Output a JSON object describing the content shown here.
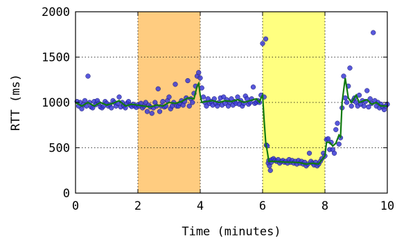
{
  "chart_data": {
    "type": "scatter",
    "xlabel": "Time (minutes)",
    "ylabel": "RTT (ms)",
    "xlim": [
      0,
      10
    ],
    "ylim": [
      0,
      2000
    ],
    "x_ticks": [
      0,
      2,
      4,
      6,
      8,
      10
    ],
    "y_ticks": [
      0,
      500,
      1000,
      1500,
      2000
    ],
    "grid": "dotted",
    "shaded_regions": [
      {
        "x0": 2,
        "x1": 4,
        "color": "#ffcc80"
      },
      {
        "x0": 6,
        "x1": 8,
        "color": "#ffff80"
      }
    ],
    "points_color": "#3b3bd6",
    "line_color": "#107a10",
    "scatter_points": [
      [
        0.05,
        1010
      ],
      [
        0.1,
        960
      ],
      [
        0.15,
        1000
      ],
      [
        0.2,
        930
      ],
      [
        0.25,
        975
      ],
      [
        0.3,
        1020
      ],
      [
        0.35,
        960
      ],
      [
        0.4,
        1290
      ],
      [
        0.45,
        1000
      ],
      [
        0.5,
        950
      ],
      [
        0.55,
        940
      ],
      [
        0.6,
        1010
      ],
      [
        0.65,
        975
      ],
      [
        0.7,
        1020
      ],
      [
        0.75,
        990
      ],
      [
        0.8,
        950
      ],
      [
        0.85,
        940
      ],
      [
        0.9,
        960
      ],
      [
        0.95,
        1010
      ],
      [
        1.0,
        990
      ],
      [
        1.05,
        960
      ],
      [
        1.1,
        975
      ],
      [
        1.15,
        940
      ],
      [
        1.2,
        1020
      ],
      [
        1.25,
        1000
      ],
      [
        1.3,
        960
      ],
      [
        1.35,
        990
      ],
      [
        1.4,
        1060
      ],
      [
        1.45,
        950
      ],
      [
        1.5,
        1000
      ],
      [
        1.55,
        960
      ],
      [
        1.6,
        940
      ],
      [
        1.65,
        990
      ],
      [
        1.7,
        1010
      ],
      [
        1.75,
        970
      ],
      [
        1.8,
        955
      ],
      [
        1.85,
        980
      ],
      [
        1.9,
        960
      ],
      [
        1.95,
        945
      ],
      [
        2.0,
        975
      ],
      [
        2.05,
        960
      ],
      [
        2.1,
        990
      ],
      [
        2.15,
        940
      ],
      [
        2.2,
        960
      ],
      [
        2.25,
        1000
      ],
      [
        2.3,
        900
      ],
      [
        2.35,
        970
      ],
      [
        2.4,
        950
      ],
      [
        2.45,
        880
      ],
      [
        2.5,
        940
      ],
      [
        2.55,
        1000
      ],
      [
        2.6,
        960
      ],
      [
        2.65,
        1150
      ],
      [
        2.7,
        900
      ],
      [
        2.75,
        960
      ],
      [
        2.8,
        1010
      ],
      [
        2.85,
        950
      ],
      [
        2.9,
        960
      ],
      [
        2.95,
        1020
      ],
      [
        3.0,
        1060
      ],
      [
        3.05,
        930
      ],
      [
        3.1,
        960
      ],
      [
        3.15,
        1000
      ],
      [
        3.2,
        1200
      ],
      [
        3.25,
        960
      ],
      [
        3.3,
        960
      ],
      [
        3.35,
        990
      ],
      [
        3.4,
        1020
      ],
      [
        3.45,
        970
      ],
      [
        3.5,
        1010
      ],
      [
        3.55,
        1050
      ],
      [
        3.6,
        1240
      ],
      [
        3.65,
        960
      ],
      [
        3.7,
        1040
      ],
      [
        3.75,
        1000
      ],
      [
        3.8,
        1100
      ],
      [
        3.85,
        1180
      ],
      [
        3.9,
        1290
      ],
      [
        3.95,
        1330
      ],
      [
        4.0,
        1270
      ],
      [
        4.05,
        1160
      ],
      [
        4.1,
        1060
      ],
      [
        4.15,
        1000
      ],
      [
        4.2,
        960
      ],
      [
        4.25,
        1040
      ],
      [
        4.3,
        990
      ],
      [
        4.35,
        1010
      ],
      [
        4.4,
        970
      ],
      [
        4.45,
        1040
      ],
      [
        4.5,
        990
      ],
      [
        4.55,
        960
      ],
      [
        4.6,
        1000
      ],
      [
        4.65,
        1050
      ],
      [
        4.7,
        970
      ],
      [
        4.75,
        1060
      ],
      [
        4.8,
        990
      ],
      [
        4.85,
        1030
      ],
      [
        4.9,
        960
      ],
      [
        4.95,
        1000
      ],
      [
        5.0,
        1040
      ],
      [
        5.05,
        970
      ],
      [
        5.1,
        1010
      ],
      [
        5.15,
        990
      ],
      [
        5.2,
        1060
      ],
      [
        5.25,
        980
      ],
      [
        5.3,
        1020
      ],
      [
        5.35,
        960
      ],
      [
        5.4,
        990
      ],
      [
        5.45,
        1070
      ],
      [
        5.5,
        1040
      ],
      [
        5.55,
        980
      ],
      [
        5.6,
        1000
      ],
      [
        5.65,
        1040
      ],
      [
        5.7,
        1170
      ],
      [
        5.75,
        990
      ],
      [
        5.8,
        1000
      ],
      [
        5.85,
        1020
      ],
      [
        5.9,
        1000
      ],
      [
        5.95,
        1080
      ],
      [
        6.0,
        1650
      ],
      [
        6.05,
        1060
      ],
      [
        6.1,
        1700
      ],
      [
        6.12,
        530
      ],
      [
        6.15,
        520
      ],
      [
        6.18,
        330
      ],
      [
        6.2,
        360
      ],
      [
        6.22,
        300
      ],
      [
        6.25,
        250
      ],
      [
        6.28,
        340
      ],
      [
        6.3,
        370
      ],
      [
        6.35,
        380
      ],
      [
        6.4,
        360
      ],
      [
        6.45,
        350
      ],
      [
        6.5,
        370
      ],
      [
        6.55,
        330
      ],
      [
        6.6,
        350
      ],
      [
        6.65,
        360
      ],
      [
        6.7,
        340
      ],
      [
        6.75,
        350
      ],
      [
        6.8,
        330
      ],
      [
        6.85,
        370
      ],
      [
        6.9,
        340
      ],
      [
        6.95,
        360
      ],
      [
        7.0,
        330
      ],
      [
        7.05,
        350
      ],
      [
        7.1,
        320
      ],
      [
        7.15,
        360
      ],
      [
        7.2,
        330
      ],
      [
        7.25,
        350
      ],
      [
        7.3,
        320
      ],
      [
        7.35,
        340
      ],
      [
        7.4,
        300
      ],
      [
        7.45,
        320
      ],
      [
        7.5,
        440
      ],
      [
        7.55,
        350
      ],
      [
        7.6,
        330
      ],
      [
        7.65,
        310
      ],
      [
        7.7,
        340
      ],
      [
        7.75,
        300
      ],
      [
        7.8,
        320
      ],
      [
        7.85,
        350
      ],
      [
        7.9,
        380
      ],
      [
        7.95,
        440
      ],
      [
        8.0,
        410
      ],
      [
        8.05,
        590
      ],
      [
        8.1,
        600
      ],
      [
        8.15,
        480
      ],
      [
        8.2,
        560
      ],
      [
        8.25,
        480
      ],
      [
        8.3,
        440
      ],
      [
        8.35,
        700
      ],
      [
        8.4,
        770
      ],
      [
        8.45,
        540
      ],
      [
        8.5,
        610
      ],
      [
        8.55,
        940
      ],
      [
        8.6,
        1290
      ],
      [
        8.65,
        1050
      ],
      [
        8.7,
        1000
      ],
      [
        8.75,
        1180
      ],
      [
        8.8,
        1380
      ],
      [
        8.85,
        960
      ],
      [
        8.9,
        1020
      ],
      [
        8.95,
        1050
      ],
      [
        9.0,
        1000
      ],
      [
        9.05,
        960
      ],
      [
        9.1,
        1080
      ],
      [
        9.15,
        980
      ],
      [
        9.2,
        1020
      ],
      [
        9.25,
        960
      ],
      [
        9.3,
        1010
      ],
      [
        9.35,
        1130
      ],
      [
        9.4,
        950
      ],
      [
        9.45,
        1040
      ],
      [
        9.5,
        990
      ],
      [
        9.55,
        1770
      ],
      [
        9.6,
        1020
      ],
      [
        9.65,
        960
      ],
      [
        9.7,
        1000
      ],
      [
        9.75,
        940
      ],
      [
        9.8,
        980
      ],
      [
        9.85,
        950
      ],
      [
        9.9,
        920
      ],
      [
        9.95,
        960
      ],
      [
        10.0,
        980
      ]
    ],
    "line_points": [
      [
        0,
        1000
      ],
      [
        0.2,
        960
      ],
      [
        0.4,
        1000
      ],
      [
        0.6,
        960
      ],
      [
        0.8,
        1000
      ],
      [
        1.0,
        970
      ],
      [
        1.2,
        990
      ],
      [
        1.4,
        1020
      ],
      [
        1.6,
        960
      ],
      [
        1.8,
        980
      ],
      [
        2.0,
        970
      ],
      [
        2.2,
        960
      ],
      [
        2.4,
        950
      ],
      [
        2.6,
        970
      ],
      [
        2.8,
        960
      ],
      [
        3.0,
        1000
      ],
      [
        3.2,
        990
      ],
      [
        3.4,
        1010
      ],
      [
        3.6,
        1050
      ],
      [
        3.8,
        1040
      ],
      [
        3.9,
        1180
      ],
      [
        3.95,
        1210
      ],
      [
        4.0,
        1080
      ],
      [
        4.05,
        1000
      ],
      [
        4.2,
        1010
      ],
      [
        4.4,
        1020
      ],
      [
        4.6,
        1000
      ],
      [
        4.8,
        1020
      ],
      [
        5.0,
        1010
      ],
      [
        5.2,
        1030
      ],
      [
        5.4,
        1000
      ],
      [
        5.6,
        1020
      ],
      [
        5.8,
        1040
      ],
      [
        5.9,
        1000
      ],
      [
        5.95,
        1050
      ],
      [
        6.0,
        1080
      ],
      [
        6.05,
        800
      ],
      [
        6.1,
        560
      ],
      [
        6.15,
        460
      ],
      [
        6.2,
        350
      ],
      [
        6.4,
        350
      ],
      [
        6.6,
        345
      ],
      [
        6.8,
        340
      ],
      [
        7.0,
        340
      ],
      [
        7.2,
        335
      ],
      [
        7.4,
        320
      ],
      [
        7.6,
        330
      ],
      [
        7.8,
        320
      ],
      [
        7.95,
        390
      ],
      [
        8.0,
        410
      ],
      [
        8.05,
        560
      ],
      [
        8.15,
        560
      ],
      [
        8.25,
        520
      ],
      [
        8.35,
        550
      ],
      [
        8.45,
        640
      ],
      [
        8.5,
        620
      ],
      [
        8.55,
        1000
      ],
      [
        8.65,
        1270
      ],
      [
        8.75,
        1050
      ],
      [
        8.85,
        1000
      ],
      [
        9.0,
        1080
      ],
      [
        9.1,
        1000
      ],
      [
        9.25,
        1020
      ],
      [
        9.35,
        1030
      ],
      [
        9.5,
        980
      ],
      [
        9.65,
        1000
      ],
      [
        9.8,
        960
      ],
      [
        10.0,
        960
      ]
    ]
  }
}
